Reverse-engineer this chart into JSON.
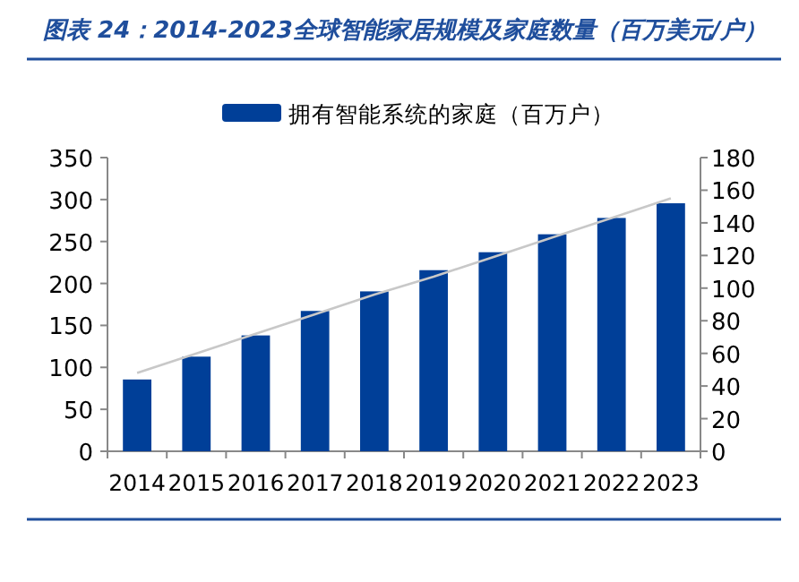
{
  "chart_data": {
    "type": "bar",
    "title": "图表 24：2014-2023全球智能家居规模及家庭数量（百万美元/户）",
    "categories": [
      "2014",
      "2015",
      "2016",
      "2017",
      "2018",
      "2019",
      "2020",
      "2021",
      "2022",
      "2023"
    ],
    "series": [
      {
        "name": "拥有智能系统的家庭（百万户）",
        "color": "#003f98",
        "axis": "y2",
        "values": [
          44,
          58,
          71,
          86,
          98,
          111,
          122,
          133,
          143,
          152
        ]
      },
      {
        "type": "line",
        "color": "#c8c8c8",
        "axis": "y2",
        "values": [
          48,
          60,
          72,
          84,
          96,
          107,
          119,
          131,
          143,
          155
        ]
      }
    ],
    "ylim": [
      0,
      350
    ],
    "yticks": [
      0,
      50,
      100,
      150,
      200,
      250,
      300,
      350
    ],
    "y2lim": [
      0,
      180
    ],
    "y2ticks": [
      0,
      20,
      40,
      60,
      80,
      100,
      120,
      140,
      160,
      180
    ],
    "legend": "top",
    "grid": false
  }
}
